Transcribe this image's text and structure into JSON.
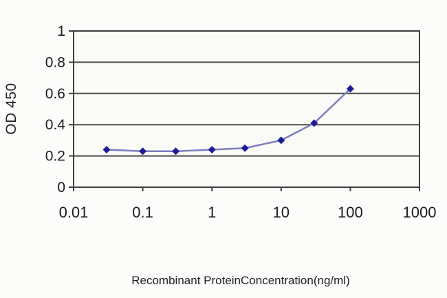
{
  "chart_data": {
    "type": "line",
    "title": "",
    "xlabel": "Recombinant ProteinConcentration(ng/ml)",
    "ylabel": "OD 450",
    "x_scale": "log",
    "x": [
      0.03,
      0.1,
      0.3,
      1,
      3,
      10,
      30,
      100
    ],
    "y": [
      0.24,
      0.23,
      0.23,
      0.24,
      0.25,
      0.3,
      0.41,
      0.63
    ],
    "xlim": [
      0.01,
      1000
    ],
    "ylim": [
      0,
      1
    ],
    "x_ticks": [
      0.01,
      0.1,
      1,
      10,
      100,
      1000
    ],
    "x_tick_labels": [
      "0.01",
      "0.1",
      "1",
      "10",
      "100",
      "1000"
    ],
    "y_ticks": [
      0,
      0.2,
      0.4,
      0.6,
      0.8,
      1
    ],
    "y_tick_labels": [
      "0",
      "0.2",
      "0.4",
      "0.6",
      "0.8",
      "1"
    ],
    "grid": true,
    "legend": "none",
    "marker": "diamond",
    "colors": {
      "line": "#7d7dc0",
      "marker": "#1c1c99",
      "grid": "#4a4a4a",
      "frame": "#3d3d3d",
      "tick_text": "#1a1a1a",
      "plot_bg": "#fafaf7",
      "page_bg": "#fcfcfa"
    }
  }
}
